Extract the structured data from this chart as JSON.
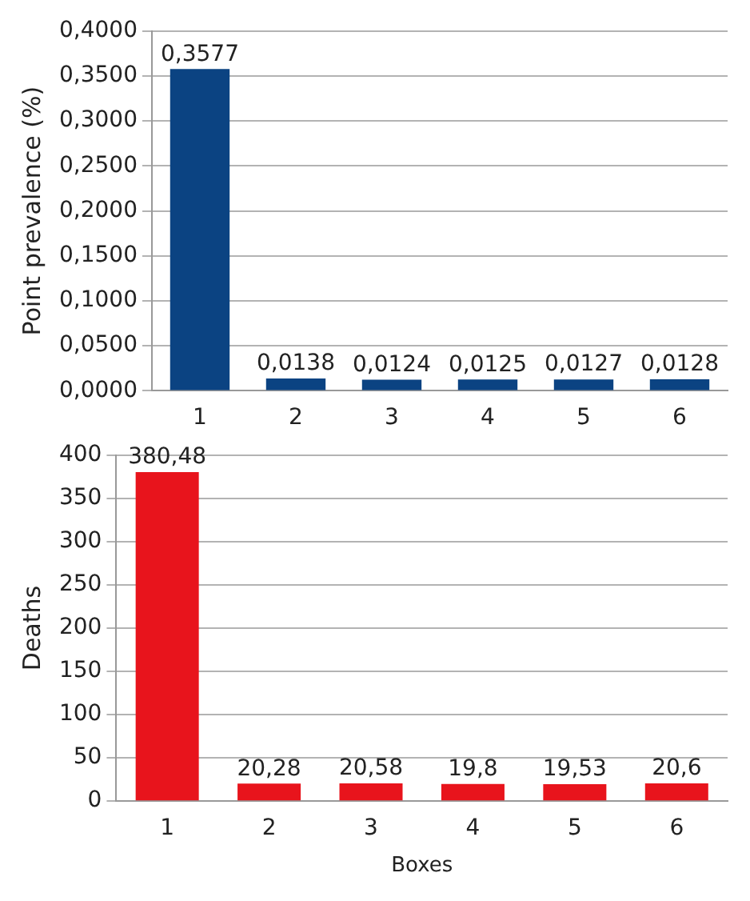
{
  "chart_data": [
    {
      "type": "bar",
      "ylabel": "Point prevalence (%)",
      "categories": [
        "1",
        "2",
        "3",
        "4",
        "5",
        "6"
      ],
      "values": [
        0.3577,
        0.0138,
        0.0124,
        0.0125,
        0.0127,
        0.0128
      ],
      "color": "#0b4382",
      "value_labels": [
        "0,3577",
        "0,0138",
        "0,0124",
        "0,0125",
        "0,0127",
        "0,0128"
      ],
      "ylim": [
        0,
        0.4
      ],
      "yticks": [
        {
          "value": 0,
          "label": "0,0000"
        },
        {
          "value": 0.05,
          "label": "0,0500"
        },
        {
          "value": 0.1,
          "label": "0,1000"
        },
        {
          "value": 0.15,
          "label": "0,1500"
        },
        {
          "value": 0.2,
          "label": "0,2000"
        },
        {
          "value": 0.25,
          "label": "0,2500"
        },
        {
          "value": 0.3,
          "label": "0,3000"
        },
        {
          "value": 0.35,
          "label": "0,3500"
        },
        {
          "value": 0.4,
          "label": "0,4000"
        }
      ],
      "grid": "y",
      "legend": false
    },
    {
      "type": "bar",
      "ylabel": "Deaths",
      "xlabel": "Boxes",
      "categories": [
        "1",
        "2",
        "3",
        "4",
        "5",
        "6"
      ],
      "values": [
        380.48,
        20.28,
        20.58,
        19.8,
        19.53,
        20.6
      ],
      "color": "#e8141c",
      "value_labels": [
        "380,48",
        "20,28",
        "20,58",
        "19,8",
        "19,53",
        "20,6"
      ],
      "ylim": [
        0,
        400
      ],
      "yticks": [
        0,
        50,
        100,
        150,
        200,
        250,
        300,
        350,
        400
      ],
      "grid": "y",
      "legend": false
    }
  ]
}
